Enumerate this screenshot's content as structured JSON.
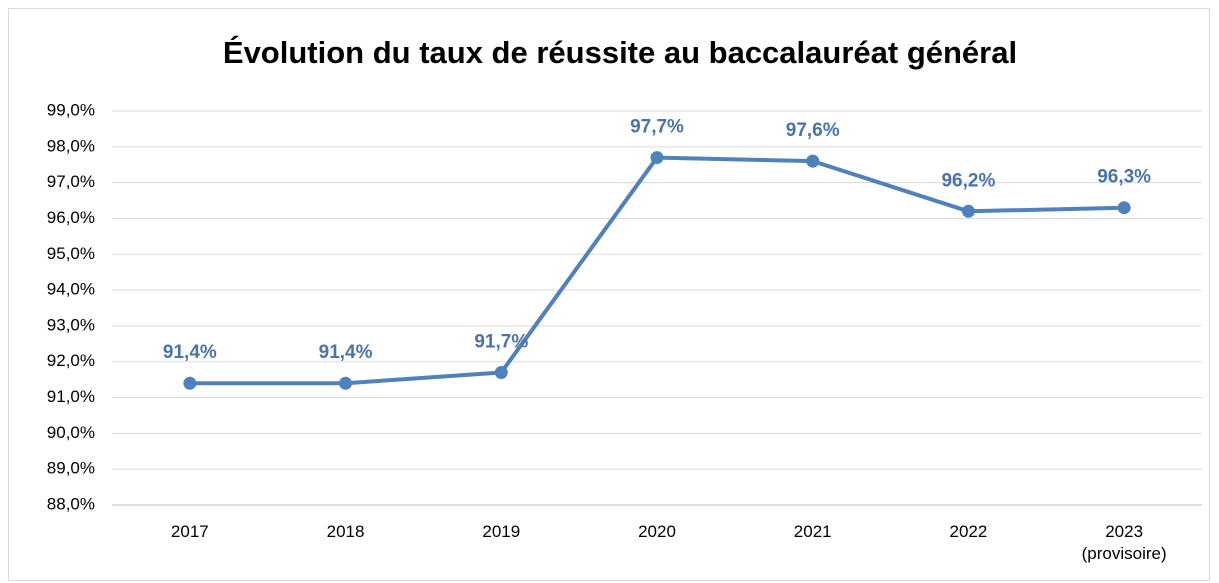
{
  "chart_data": {
    "type": "line",
    "title": "Évolution du taux de réussite au baccalauréat général",
    "categories": [
      "2017",
      "2018",
      "2019",
      "2020",
      "2021",
      "2022",
      "2023 (provisoire)"
    ],
    "series": [
      {
        "name": "Taux de réussite",
        "color": "#4f81bd",
        "values": [
          91.4,
          91.4,
          91.7,
          97.7,
          97.6,
          96.2,
          96.3
        ],
        "value_labels": [
          "91,4%",
          "91,4%",
          "91,7%",
          "97,7%",
          "97,6%",
          "96,2%",
          "96,3%"
        ]
      }
    ],
    "ylim": [
      88,
      99
    ],
    "yticks": [
      {
        "value": 88,
        "label": "88,0%"
      },
      {
        "value": 89,
        "label": "89,0%"
      },
      {
        "value": 90,
        "label": "90,0%"
      },
      {
        "value": 91,
        "label": "91,0%"
      },
      {
        "value": 92,
        "label": "92,0%"
      },
      {
        "value": 93,
        "label": "93,0%"
      },
      {
        "value": 94,
        "label": "94,0%"
      },
      {
        "value": 95,
        "label": "95,0%"
      },
      {
        "value": 96,
        "label": "96,0%"
      },
      {
        "value": 97,
        "label": "97,0%"
      },
      {
        "value": 98,
        "label": "98,0%"
      },
      {
        "value": 99,
        "label": "99,0%"
      }
    ],
    "grid": true
  }
}
